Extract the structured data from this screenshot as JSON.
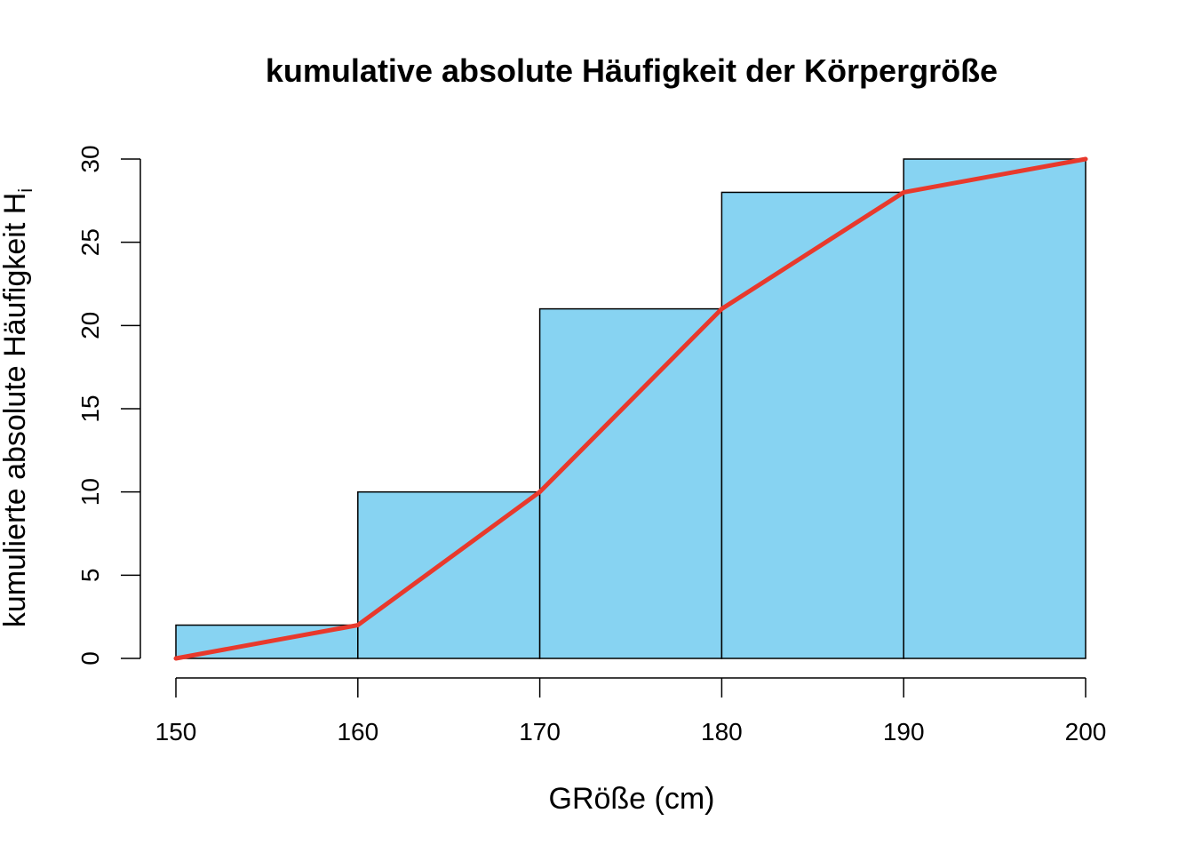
{
  "chart_data": {
    "type": "bar",
    "title": "kumulative absolute Häufigkeit der Körpergröße",
    "xlabel": "GRöße (cm)",
    "ylabel": "kumulierte absolute Häufigkeit H",
    "ylabel_subscript": "i",
    "bin_edges": [
      150,
      160,
      170,
      180,
      190,
      200
    ],
    "values": [
      2,
      10,
      21,
      28,
      30
    ],
    "xlim": [
      150,
      200
    ],
    "ylim": [
      0,
      30
    ],
    "x_ticks": [
      150,
      160,
      170,
      180,
      190,
      200
    ],
    "y_ticks": [
      0,
      5,
      10,
      15,
      20,
      25,
      30
    ],
    "grid": false,
    "bar_color": "#87D3F2",
    "bar_edge_color": "#000000",
    "series": [
      {
        "type": "line",
        "color": "#E8392C",
        "x": [
          150,
          160,
          170,
          180,
          190,
          200
        ],
        "y": [
          0,
          2,
          10,
          21,
          28,
          30
        ]
      }
    ]
  }
}
